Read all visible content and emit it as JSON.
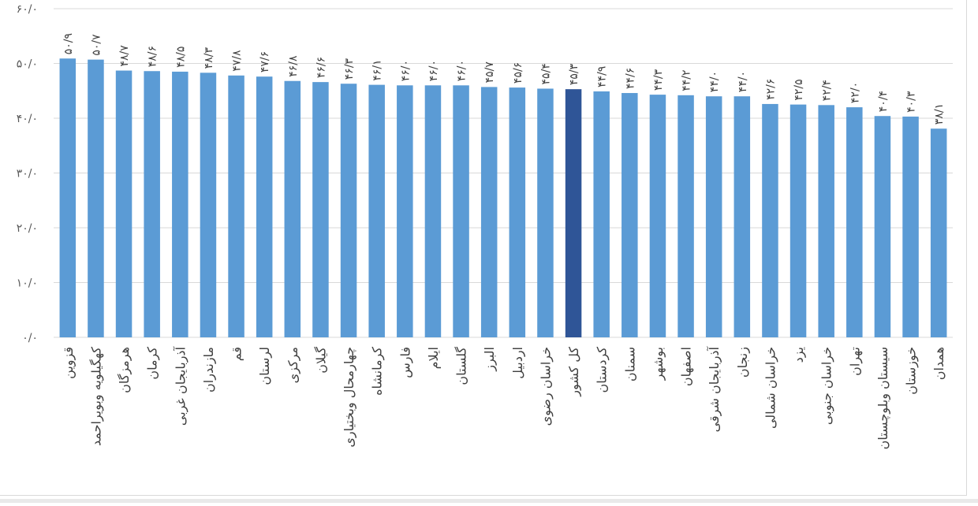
{
  "chart_data": {
    "type": "bar",
    "title": "",
    "xlabel": "",
    "ylabel": "",
    "ylim": [
      0,
      60
    ],
    "yticks": [
      0,
      10,
      20,
      30,
      40,
      50,
      60
    ],
    "ytick_labels": [
      "۰/۰",
      "۱۰/۰",
      "۲۰/۰",
      "۳۰/۰",
      "۴۰/۰",
      "۵۰/۰",
      "۶۰/۰"
    ],
    "grid": "horizontal",
    "legend": "none",
    "colors": {
      "bar": "#5b9bd5",
      "highlight": "#2f5597",
      "grid": "#d9d9d9"
    },
    "highlight_category": "کل کشور",
    "categories": [
      "قزوین",
      "کهگیلویه وبویراحمد",
      "هرمزگان",
      "کرمان",
      "آذربایجان غربی",
      "مازندران",
      "قم",
      "لرستان",
      "مرکزی",
      "گیلان",
      "چهارمحال وبختیاری",
      "کرمانشاه",
      "فارس",
      "ایلام",
      "گلستان",
      "البرز",
      "اردبیل",
      "خراسان رضوی",
      "کل کشور",
      "کردستان",
      "سمنان",
      "بوشهر",
      "اصفهان",
      "آذربایجان شرقی",
      "زنجان",
      "خراسان شمالی",
      "یزد",
      "خراسان جنوبی",
      "تهران",
      "سیستان وبلوچستان",
      "خوزستان",
      "همدان"
    ],
    "values": [
      50.9,
      50.7,
      48.7,
      48.6,
      48.5,
      48.3,
      47.8,
      47.6,
      46.8,
      46.6,
      46.3,
      46.1,
      46.0,
      46.0,
      46.0,
      45.7,
      45.6,
      45.4,
      45.3,
      44.9,
      44.6,
      44.3,
      44.2,
      44.0,
      44.0,
      42.6,
      42.5,
      42.4,
      42.0,
      40.4,
      40.3,
      38.1
    ],
    "value_labels": [
      "۵۰/۹",
      "۵۰/۷",
      "۴۸/۷",
      "۴۸/۶",
      "۴۸/۵",
      "۴۸/۳",
      "۴۷/۸",
      "۴۷/۶",
      "۴۶/۸",
      "۴۶/۶",
      "۴۶/۳",
      "۴۶/۱",
      "۴۶/۰",
      "۴۶/۰",
      "۴۶/۰",
      "۴۵/۷",
      "۴۵/۶",
      "۴۵/۴",
      "۴۵/۳",
      "۴۴/۹",
      "۴۴/۶",
      "۴۴/۳",
      "۴۴/۲",
      "۴۴/۰",
      "۴۴/۰",
      "۴۲/۶",
      "۴۲/۵",
      "۴۲/۴",
      "۴۲/۰",
      "۴۰/۴",
      "۴۰/۳",
      "۳۸/۱"
    ]
  }
}
